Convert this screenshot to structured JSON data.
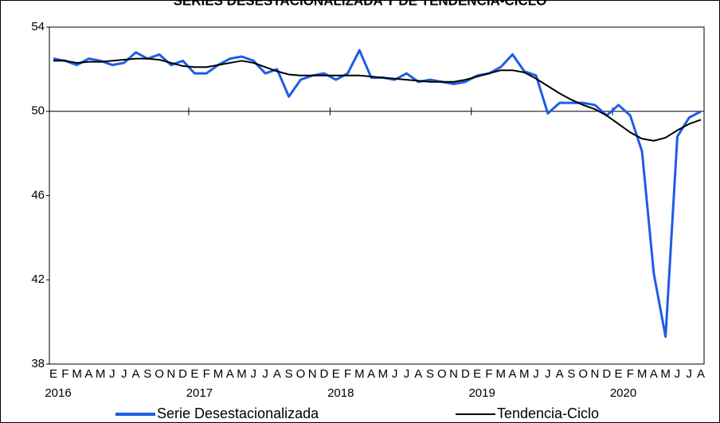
{
  "chart_data": {
    "type": "line",
    "title": "SERIES DESESTACIONALIZADA Y DE TENDENCIA-CICLO",
    "categories": [
      "E",
      "F",
      "M",
      "A",
      "M",
      "J",
      "J",
      "A",
      "S",
      "O",
      "N",
      "D",
      "E",
      "F",
      "M",
      "A",
      "M",
      "J",
      "J",
      "A",
      "S",
      "O",
      "N",
      "D",
      "E",
      "F",
      "M",
      "A",
      "M",
      "J",
      "J",
      "A",
      "S",
      "O",
      "N",
      "D",
      "E",
      "F",
      "M",
      "A",
      "M",
      "J",
      "J",
      "A",
      "S",
      "O",
      "N",
      "D",
      "E",
      "F",
      "M",
      "A",
      "M",
      "J",
      "J",
      "A"
    ],
    "years": [
      "2016",
      "2017",
      "2018",
      "2019",
      "2020"
    ],
    "ylim": [
      38,
      54
    ],
    "yticks": [
      38,
      42,
      46,
      50,
      54
    ],
    "axis_line_at": 50,
    "legend": "bottom",
    "series": [
      {
        "name": "Serie Desestacionalizada",
        "color": "#1f5be8",
        "values": [
          52.5,
          52.4,
          52.2,
          52.5,
          52.4,
          52.2,
          52.3,
          52.8,
          52.5,
          52.7,
          52.2,
          52.4,
          51.8,
          51.8,
          52.2,
          52.5,
          52.6,
          52.4,
          51.8,
          52.0,
          50.7,
          51.5,
          51.7,
          51.8,
          51.5,
          51.8,
          52.9,
          51.6,
          51.6,
          51.5,
          51.8,
          51.4,
          51.5,
          51.4,
          51.3,
          51.4,
          51.7,
          51.8,
          52.1,
          52.7,
          51.9,
          51.7,
          49.9,
          50.4,
          50.4,
          50.4,
          50.3,
          49.8,
          50.3,
          49.8,
          48.1,
          42.3,
          39.3,
          48.8,
          49.7,
          50.0
        ]
      },
      {
        "name": "Tendencia-Ciclo",
        "color": "#000000",
        "values": [
          52.4,
          52.4,
          52.3,
          52.35,
          52.35,
          52.4,
          52.45,
          52.5,
          52.5,
          52.45,
          52.3,
          52.15,
          52.1,
          52.1,
          52.2,
          52.3,
          52.4,
          52.3,
          52.1,
          51.9,
          51.75,
          51.7,
          51.7,
          51.7,
          51.7,
          51.7,
          51.7,
          51.65,
          51.6,
          51.55,
          51.5,
          51.45,
          51.4,
          51.4,
          51.4,
          51.5,
          51.65,
          51.8,
          51.95,
          51.95,
          51.85,
          51.55,
          51.2,
          50.85,
          50.55,
          50.3,
          50.1,
          49.8,
          49.4,
          49.0,
          48.7,
          48.6,
          48.75,
          49.1,
          49.4,
          49.6
        ]
      }
    ]
  }
}
